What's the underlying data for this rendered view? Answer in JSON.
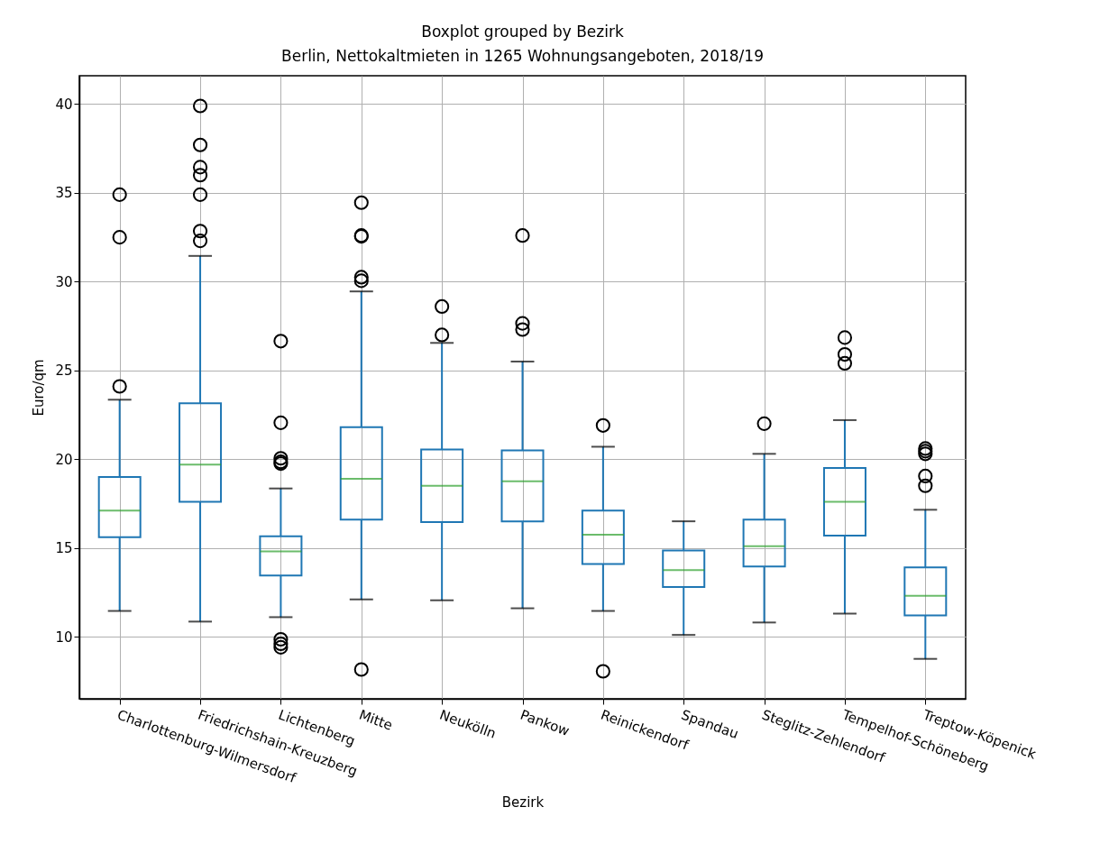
{
  "chart_data": {
    "type": "box",
    "title": "Boxplot grouped by Bezirk",
    "subtitle": "Berlin, Nettokaltmieten in 1265 Wohnungsangeboten, 2018/19",
    "xlabel": "Bezirk",
    "ylabel": "Euro/qm",
    "categories": [
      "Charlottenburg-Wilmersdorf",
      "Friedrichshain-Kreuzberg",
      "Lichtenberg",
      "Mitte",
      "Neukölln",
      "Pankow",
      "Reinickendorf",
      "Spandau",
      "Steglitz-Zehlendorf",
      "Tempelhof-Schöneberg",
      "Treptow-Köpenick"
    ],
    "grid": true,
    "ylim": [
      6.5,
      41.6
    ],
    "yticks": [
      10,
      15,
      20,
      25,
      30,
      35,
      40
    ],
    "boxes": [
      {
        "low": 11.45,
        "q1": 15.6,
        "median": 17.1,
        "q3": 19.0,
        "high": 23.35,
        "outliers": [
          24.1,
          32.5,
          34.9
        ]
      },
      {
        "low": 10.85,
        "q1": 17.6,
        "median": 19.7,
        "q3": 23.15,
        "high": 31.45,
        "outliers": [
          32.3,
          32.85,
          34.9,
          36.0,
          36.45,
          37.7,
          39.9
        ]
      },
      {
        "low": 11.1,
        "q1": 13.45,
        "median": 14.8,
        "q3": 15.65,
        "high": 18.35,
        "outliers": [
          9.4,
          9.6,
          9.85,
          19.75,
          19.85,
          20.05,
          22.05,
          26.65
        ]
      },
      {
        "low": 12.1,
        "q1": 16.6,
        "median": 18.9,
        "q3": 21.8,
        "high": 29.45,
        "outliers": [
          8.15,
          30.05,
          30.25,
          32.55,
          32.6,
          34.45
        ]
      },
      {
        "low": 12.05,
        "q1": 16.45,
        "median": 18.5,
        "q3": 20.55,
        "high": 26.55,
        "outliers": [
          27.0,
          28.6
        ]
      },
      {
        "low": 11.6,
        "q1": 16.5,
        "median": 18.75,
        "q3": 20.5,
        "high": 25.5,
        "outliers": [
          27.3,
          27.65,
          32.6
        ]
      },
      {
        "low": 11.45,
        "q1": 14.1,
        "median": 15.75,
        "q3": 17.1,
        "high": 20.7,
        "outliers": [
          8.05,
          21.9
        ]
      },
      {
        "low": 10.1,
        "q1": 12.8,
        "median": 13.75,
        "q3": 14.85,
        "high": 16.5
      },
      {
        "low": 10.8,
        "q1": 13.95,
        "median": 15.1,
        "q3": 16.6,
        "high": 20.3,
        "outliers": [
          22.0
        ]
      },
      {
        "low": 11.3,
        "q1": 15.7,
        "median": 17.6,
        "q3": 19.5,
        "high": 22.2,
        "outliers": [
          25.4,
          25.9,
          26.85
        ]
      },
      {
        "low": 8.75,
        "q1": 11.2,
        "median": 12.3,
        "q3": 13.9,
        "high": 17.15,
        "outliers": [
          18.5,
          19.05,
          20.3,
          20.45,
          20.6
        ]
      }
    ]
  }
}
